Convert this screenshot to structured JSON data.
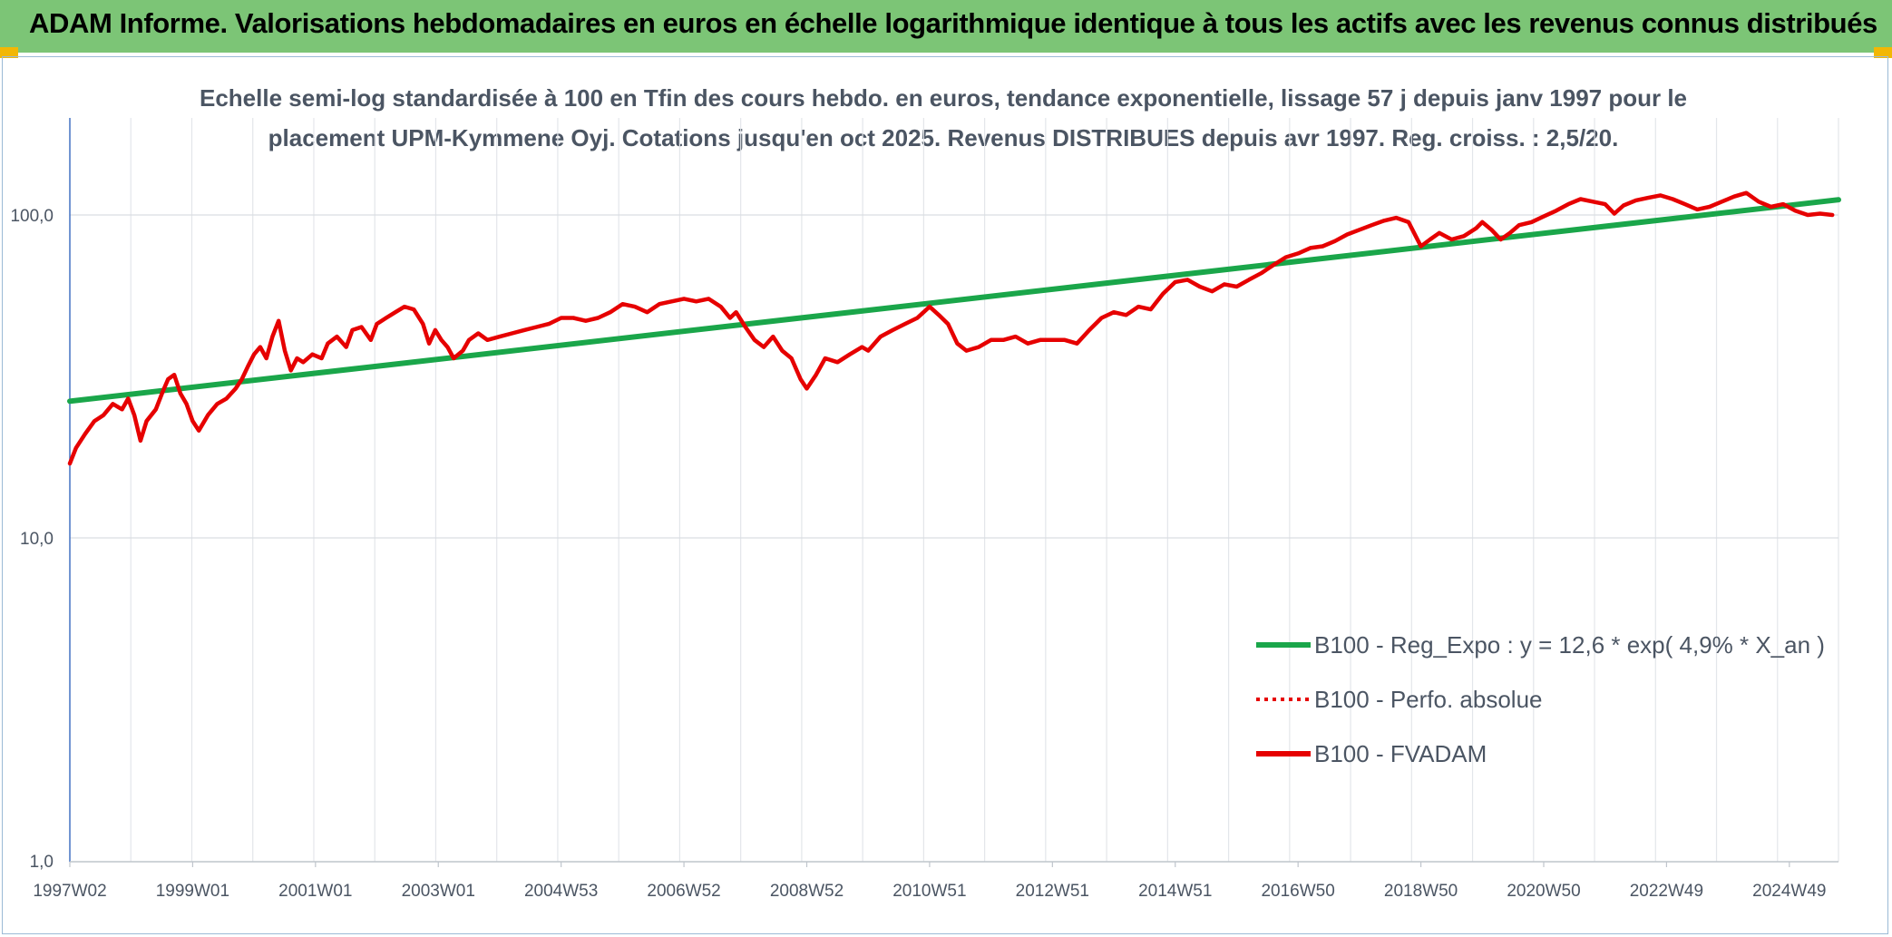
{
  "header": {
    "title": "ADAM Informe. Valorisations hebdomadaires en euros en échelle logarithmique identique à tous les actifs avec les revenus connus distribués"
  },
  "chart_data": {
    "type": "line",
    "title_line1": "Echelle semi-log standardisée à 100 en Tfin des cours hebdo. en euros, tendance exponentielle, lissage 57 j depuis janv 1997 pour le",
    "title_line2": "placement UPM-Kymmene Oyj. Cotations jusqu'en oct 2025. Revenus DISTRIBUES depuis avr 1997. Reg. croiss. : 2,5/20.",
    "y_scale": "log",
    "ylim": [
      1,
      200
    ],
    "xlim": [
      1997.0,
      2025.8
    ],
    "y_ticks": [
      {
        "value": 1,
        "label": "1,0"
      },
      {
        "value": 10,
        "label": "10,0"
      },
      {
        "value": 100,
        "label": "100,0"
      }
    ],
    "x_ticks": [
      {
        "value": 1997.0,
        "label": "1997W02"
      },
      {
        "value": 1999.0,
        "label": "1999W01"
      },
      {
        "value": 2001.0,
        "label": "2001W01"
      },
      {
        "value": 2003.0,
        "label": "2003W01"
      },
      {
        "value": 2005.0,
        "label": "2004W53"
      },
      {
        "value": 2007.0,
        "label": "2006W52"
      },
      {
        "value": 2009.0,
        "label": "2008W52"
      },
      {
        "value": 2011.0,
        "label": "2010W51"
      },
      {
        "value": 2013.0,
        "label": "2012W51"
      },
      {
        "value": 2015.0,
        "label": "2014W51"
      },
      {
        "value": 2017.0,
        "label": "2016W50"
      },
      {
        "value": 2019.0,
        "label": "2018W50"
      },
      {
        "value": 2021.0,
        "label": "2020W50"
      },
      {
        "value": 2023.0,
        "label": "2022W49"
      },
      {
        "value": 2025.0,
        "label": "2024W49"
      }
    ],
    "gridlines": true,
    "legend_position": "bottom-right",
    "series": [
      {
        "name": "B100 - Reg_Expo : y = 12,6 * exp( 4,9% *  X_an )",
        "color": "#1aa64a",
        "style": "solid",
        "points": [
          [
            1997.0,
            26.5
          ],
          [
            2025.8,
            111.5
          ]
        ]
      },
      {
        "name": "B100 - Perfo. absolue",
        "color": "#e60000",
        "style": "dotted",
        "points": []
      },
      {
        "name": "B100 - FVADAM",
        "color": "#e60000",
        "style": "solid",
        "points": [
          [
            1997.0,
            17
          ],
          [
            1997.1,
            19
          ],
          [
            1997.25,
            21
          ],
          [
            1997.4,
            23
          ],
          [
            1997.55,
            24
          ],
          [
            1997.7,
            26
          ],
          [
            1997.85,
            25
          ],
          [
            1997.95,
            27
          ],
          [
            1998.05,
            24
          ],
          [
            1998.15,
            20
          ],
          [
            1998.25,
            23
          ],
          [
            1998.4,
            25
          ],
          [
            1998.5,
            28
          ],
          [
            1998.6,
            31
          ],
          [
            1998.7,
            32
          ],
          [
            1998.8,
            28
          ],
          [
            1998.9,
            26
          ],
          [
            1999.0,
            23
          ],
          [
            1999.1,
            21.5
          ],
          [
            1999.25,
            24
          ],
          [
            1999.4,
            26
          ],
          [
            1999.55,
            27
          ],
          [
            1999.7,
            29
          ],
          [
            1999.8,
            31
          ],
          [
            1999.9,
            34
          ],
          [
            2000.0,
            37
          ],
          [
            2000.1,
            39
          ],
          [
            2000.2,
            36
          ],
          [
            2000.3,
            42
          ],
          [
            2000.4,
            47
          ],
          [
            2000.5,
            38
          ],
          [
            2000.6,
            33
          ],
          [
            2000.7,
            36
          ],
          [
            2000.8,
            35
          ],
          [
            2000.95,
            37
          ],
          [
            2001.1,
            36
          ],
          [
            2001.2,
            40
          ],
          [
            2001.35,
            42
          ],
          [
            2001.5,
            39
          ],
          [
            2001.6,
            44
          ],
          [
            2001.75,
            45
          ],
          [
            2001.9,
            41
          ],
          [
            2002.0,
            46
          ],
          [
            2002.15,
            48
          ],
          [
            2002.3,
            50
          ],
          [
            2002.45,
            52
          ],
          [
            2002.6,
            51
          ],
          [
            2002.75,
            46
          ],
          [
            2002.85,
            40
          ],
          [
            2002.95,
            44
          ],
          [
            2003.05,
            41
          ],
          [
            2003.15,
            39
          ],
          [
            2003.25,
            36
          ],
          [
            2003.4,
            38
          ],
          [
            2003.5,
            41
          ],
          [
            2003.65,
            43
          ],
          [
            2003.8,
            41
          ],
          [
            2004.0,
            42
          ],
          [
            2004.2,
            43
          ],
          [
            2004.4,
            44
          ],
          [
            2004.6,
            45
          ],
          [
            2004.8,
            46
          ],
          [
            2005.0,
            48
          ],
          [
            2005.2,
            48
          ],
          [
            2005.4,
            47
          ],
          [
            2005.6,
            48
          ],
          [
            2005.8,
            50
          ],
          [
            2006.0,
            53
          ],
          [
            2006.2,
            52
          ],
          [
            2006.4,
            50
          ],
          [
            2006.6,
            53
          ],
          [
            2006.8,
            54
          ],
          [
            2007.0,
            55
          ],
          [
            2007.2,
            54
          ],
          [
            2007.4,
            55
          ],
          [
            2007.6,
            52
          ],
          [
            2007.75,
            48
          ],
          [
            2007.85,
            50
          ],
          [
            2008.0,
            45
          ],
          [
            2008.15,
            41
          ],
          [
            2008.3,
            39
          ],
          [
            2008.45,
            42
          ],
          [
            2008.6,
            38
          ],
          [
            2008.75,
            36
          ],
          [
            2008.9,
            31
          ],
          [
            2009.0,
            29
          ],
          [
            2009.15,
            32
          ],
          [
            2009.3,
            36
          ],
          [
            2009.5,
            35
          ],
          [
            2009.7,
            37
          ],
          [
            2009.9,
            39
          ],
          [
            2010.0,
            38
          ],
          [
            2010.2,
            42
          ],
          [
            2010.4,
            44
          ],
          [
            2010.6,
            46
          ],
          [
            2010.8,
            48
          ],
          [
            2011.0,
            52
          ],
          [
            2011.15,
            49
          ],
          [
            2011.3,
            46
          ],
          [
            2011.45,
            40
          ],
          [
            2011.6,
            38
          ],
          [
            2011.8,
            39
          ],
          [
            2012.0,
            41
          ],
          [
            2012.2,
            41
          ],
          [
            2012.4,
            42
          ],
          [
            2012.6,
            40
          ],
          [
            2012.8,
            41
          ],
          [
            2013.0,
            41
          ],
          [
            2013.2,
            41
          ],
          [
            2013.4,
            40
          ],
          [
            2013.6,
            44
          ],
          [
            2013.8,
            48
          ],
          [
            2014.0,
            50
          ],
          [
            2014.2,
            49
          ],
          [
            2014.4,
            52
          ],
          [
            2014.6,
            51
          ],
          [
            2014.8,
            57
          ],
          [
            2015.0,
            62
          ],
          [
            2015.2,
            63
          ],
          [
            2015.4,
            60
          ],
          [
            2015.6,
            58
          ],
          [
            2015.8,
            61
          ],
          [
            2016.0,
            60
          ],
          [
            2016.2,
            63
          ],
          [
            2016.4,
            66
          ],
          [
            2016.6,
            70
          ],
          [
            2016.8,
            74
          ],
          [
            2017.0,
            76
          ],
          [
            2017.2,
            79
          ],
          [
            2017.4,
            80
          ],
          [
            2017.6,
            83
          ],
          [
            2017.8,
            87
          ],
          [
            2018.0,
            90
          ],
          [
            2018.2,
            93
          ],
          [
            2018.4,
            96
          ],
          [
            2018.6,
            98
          ],
          [
            2018.8,
            95
          ],
          [
            2019.0,
            80
          ],
          [
            2019.15,
            84
          ],
          [
            2019.3,
            88
          ],
          [
            2019.5,
            84
          ],
          [
            2019.7,
            86
          ],
          [
            2019.9,
            91
          ],
          [
            2020.0,
            95
          ],
          [
            2020.15,
            90
          ],
          [
            2020.3,
            84
          ],
          [
            2020.45,
            88
          ],
          [
            2020.6,
            93
          ],
          [
            2020.8,
            95
          ],
          [
            2021.0,
            99
          ],
          [
            2021.2,
            103
          ],
          [
            2021.4,
            108
          ],
          [
            2021.6,
            112
          ],
          [
            2021.8,
            110
          ],
          [
            2022.0,
            108
          ],
          [
            2022.15,
            101
          ],
          [
            2022.3,
            107
          ],
          [
            2022.5,
            111
          ],
          [
            2022.7,
            113
          ],
          [
            2022.9,
            115
          ],
          [
            2023.1,
            112
          ],
          [
            2023.3,
            108
          ],
          [
            2023.5,
            104
          ],
          [
            2023.7,
            106
          ],
          [
            2023.9,
            110
          ],
          [
            2024.1,
            114
          ],
          [
            2024.3,
            117
          ],
          [
            2024.5,
            110
          ],
          [
            2024.7,
            106
          ],
          [
            2024.9,
            108
          ],
          [
            2025.1,
            103
          ],
          [
            2025.3,
            100
          ],
          [
            2025.5,
            101
          ],
          [
            2025.7,
            100
          ]
        ]
      }
    ]
  }
}
